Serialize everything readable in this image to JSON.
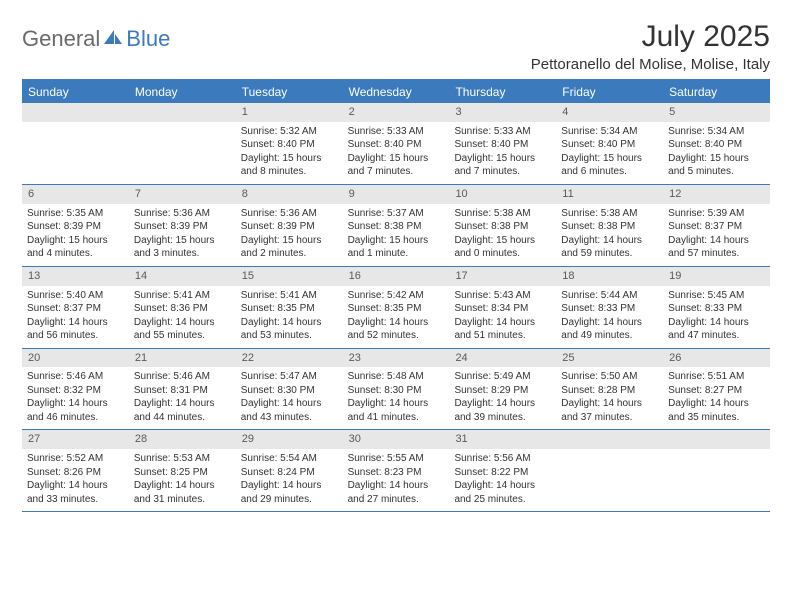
{
  "logo": {
    "general": "General",
    "blue": "Blue"
  },
  "title": "July 2025",
  "location": "Pettoranello del Molise, Molise, Italy",
  "colors": {
    "accent": "#3a7abd",
    "dayNumBg": "#e7e7e7",
    "text": "#333333",
    "logoGray": "#6a6a6a"
  },
  "weekdays": [
    "Sunday",
    "Monday",
    "Tuesday",
    "Wednesday",
    "Thursday",
    "Friday",
    "Saturday"
  ],
  "weeks": [
    [
      null,
      null,
      {
        "n": "1",
        "sr": "5:32 AM",
        "ss": "8:40 PM",
        "dl": "15 hours and 8 minutes."
      },
      {
        "n": "2",
        "sr": "5:33 AM",
        "ss": "8:40 PM",
        "dl": "15 hours and 7 minutes."
      },
      {
        "n": "3",
        "sr": "5:33 AM",
        "ss": "8:40 PM",
        "dl": "15 hours and 7 minutes."
      },
      {
        "n": "4",
        "sr": "5:34 AM",
        "ss": "8:40 PM",
        "dl": "15 hours and 6 minutes."
      },
      {
        "n": "5",
        "sr": "5:34 AM",
        "ss": "8:40 PM",
        "dl": "15 hours and 5 minutes."
      }
    ],
    [
      {
        "n": "6",
        "sr": "5:35 AM",
        "ss": "8:39 PM",
        "dl": "15 hours and 4 minutes."
      },
      {
        "n": "7",
        "sr": "5:36 AM",
        "ss": "8:39 PM",
        "dl": "15 hours and 3 minutes."
      },
      {
        "n": "8",
        "sr": "5:36 AM",
        "ss": "8:39 PM",
        "dl": "15 hours and 2 minutes."
      },
      {
        "n": "9",
        "sr": "5:37 AM",
        "ss": "8:38 PM",
        "dl": "15 hours and 1 minute."
      },
      {
        "n": "10",
        "sr": "5:38 AM",
        "ss": "8:38 PM",
        "dl": "15 hours and 0 minutes."
      },
      {
        "n": "11",
        "sr": "5:38 AM",
        "ss": "8:38 PM",
        "dl": "14 hours and 59 minutes."
      },
      {
        "n": "12",
        "sr": "5:39 AM",
        "ss": "8:37 PM",
        "dl": "14 hours and 57 minutes."
      }
    ],
    [
      {
        "n": "13",
        "sr": "5:40 AM",
        "ss": "8:37 PM",
        "dl": "14 hours and 56 minutes."
      },
      {
        "n": "14",
        "sr": "5:41 AM",
        "ss": "8:36 PM",
        "dl": "14 hours and 55 minutes."
      },
      {
        "n": "15",
        "sr": "5:41 AM",
        "ss": "8:35 PM",
        "dl": "14 hours and 53 minutes."
      },
      {
        "n": "16",
        "sr": "5:42 AM",
        "ss": "8:35 PM",
        "dl": "14 hours and 52 minutes."
      },
      {
        "n": "17",
        "sr": "5:43 AM",
        "ss": "8:34 PM",
        "dl": "14 hours and 51 minutes."
      },
      {
        "n": "18",
        "sr": "5:44 AM",
        "ss": "8:33 PM",
        "dl": "14 hours and 49 minutes."
      },
      {
        "n": "19",
        "sr": "5:45 AM",
        "ss": "8:33 PM",
        "dl": "14 hours and 47 minutes."
      }
    ],
    [
      {
        "n": "20",
        "sr": "5:46 AM",
        "ss": "8:32 PM",
        "dl": "14 hours and 46 minutes."
      },
      {
        "n": "21",
        "sr": "5:46 AM",
        "ss": "8:31 PM",
        "dl": "14 hours and 44 minutes."
      },
      {
        "n": "22",
        "sr": "5:47 AM",
        "ss": "8:30 PM",
        "dl": "14 hours and 43 minutes."
      },
      {
        "n": "23",
        "sr": "5:48 AM",
        "ss": "8:30 PM",
        "dl": "14 hours and 41 minutes."
      },
      {
        "n": "24",
        "sr": "5:49 AM",
        "ss": "8:29 PM",
        "dl": "14 hours and 39 minutes."
      },
      {
        "n": "25",
        "sr": "5:50 AM",
        "ss": "8:28 PM",
        "dl": "14 hours and 37 minutes."
      },
      {
        "n": "26",
        "sr": "5:51 AM",
        "ss": "8:27 PM",
        "dl": "14 hours and 35 minutes."
      }
    ],
    [
      {
        "n": "27",
        "sr": "5:52 AM",
        "ss": "8:26 PM",
        "dl": "14 hours and 33 minutes."
      },
      {
        "n": "28",
        "sr": "5:53 AM",
        "ss": "8:25 PM",
        "dl": "14 hours and 31 minutes."
      },
      {
        "n": "29",
        "sr": "5:54 AM",
        "ss": "8:24 PM",
        "dl": "14 hours and 29 minutes."
      },
      {
        "n": "30",
        "sr": "5:55 AM",
        "ss": "8:23 PM",
        "dl": "14 hours and 27 minutes."
      },
      {
        "n": "31",
        "sr": "5:56 AM",
        "ss": "8:22 PM",
        "dl": "14 hours and 25 minutes."
      },
      null,
      null
    ]
  ],
  "labels": {
    "sunrise": "Sunrise:",
    "sunset": "Sunset:",
    "daylight": "Daylight:"
  }
}
